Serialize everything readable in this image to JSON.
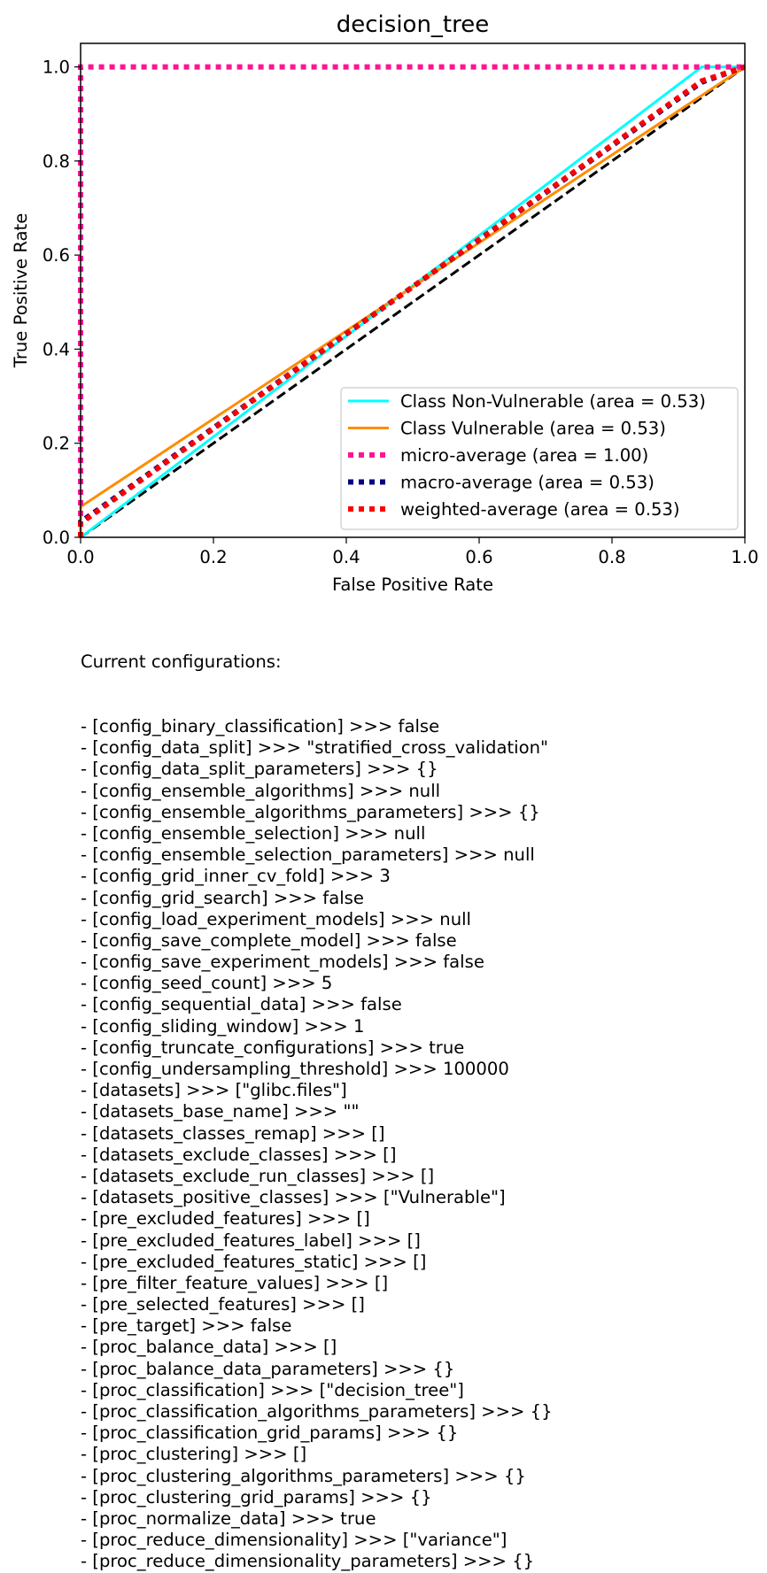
{
  "chart_data": {
    "type": "line",
    "title": "decision_tree",
    "xlabel": "False Positive Rate",
    "ylabel": "True Positive Rate",
    "xlim": [
      0.0,
      1.0
    ],
    "ylim": [
      0.0,
      1.05
    ],
    "xticks": [
      "0.0",
      "0.2",
      "0.4",
      "0.6",
      "0.8",
      "1.0"
    ],
    "yticks": [
      "0.0",
      "0.2",
      "0.4",
      "0.6",
      "0.8",
      "1.0"
    ],
    "legend_position": "lower-right",
    "series": [
      {
        "name": "Class Non-Vulnerable (area = 0.53)",
        "color": "#00ffff",
        "style": "solid",
        "x": [
          0.0,
          0.935,
          1.0
        ],
        "y": [
          0.0,
          1.0,
          1.0
        ]
      },
      {
        "name": "Class Vulnerable (area = 0.53)",
        "color": "#ff8c00",
        "style": "solid",
        "x": [
          0.0,
          0.0,
          1.0
        ],
        "y": [
          0.0,
          0.065,
          1.0
        ]
      },
      {
        "name": "micro-average (area = 1.00)",
        "color": "#ff1493",
        "style": "dotted",
        "x": [
          0.0,
          0.0,
          1.0
        ],
        "y": [
          0.0,
          1.0,
          1.0
        ]
      },
      {
        "name": "macro-average (area = 0.53)",
        "color": "#000080",
        "style": "dotted",
        "x": [
          0.0,
          0.0,
          0.935,
          1.0
        ],
        "y": [
          0.0,
          0.0325,
          0.9675,
          1.0
        ]
      },
      {
        "name": "weighted-average (area = 0.53)",
        "color": "#ff0000",
        "style": "dotted",
        "x": [
          0.0,
          0.0,
          0.935,
          1.0
        ],
        "y": [
          0.0,
          0.03,
          0.97,
          1.0
        ]
      }
    ],
    "reference_line": {
      "name": "chance",
      "color": "#000000",
      "style": "dashed",
      "x": [
        0.0,
        1.0
      ],
      "y": [
        0.0,
        1.0
      ]
    }
  },
  "config": {
    "header": "Current configurations:",
    "lines": [
      "- [config_binary_classification] >>> false",
      "- [config_data_split] >>> \"stratified_cross_validation\"",
      "- [config_data_split_parameters] >>> {}",
      "- [config_ensemble_algorithms] >>> null",
      "- [config_ensemble_algorithms_parameters] >>> {}",
      "- [config_ensemble_selection] >>> null",
      "- [config_ensemble_selection_parameters] >>> null",
      "- [config_grid_inner_cv_fold] >>> 3",
      "- [config_grid_search] >>> false",
      "- [config_load_experiment_models] >>> null",
      "- [config_save_complete_model] >>> false",
      "- [config_save_experiment_models] >>> false",
      "- [config_seed_count] >>> 5",
      "- [config_sequential_data] >>> false",
      "- [config_sliding_window] >>> 1",
      "- [config_truncate_configurations] >>> true",
      "- [config_undersampling_threshold] >>> 100000",
      "- [datasets] >>> [\"glibc.files\"]",
      "- [datasets_base_name] >>> \"\"",
      "- [datasets_classes_remap] >>> []",
      "- [datasets_exclude_classes] >>> []",
      "- [datasets_exclude_run_classes] >>> []",
      "- [datasets_positive_classes] >>> [\"Vulnerable\"]",
      "- [pre_excluded_features] >>> []",
      "- [pre_excluded_features_label] >>> []",
      "- [pre_excluded_features_static] >>> []",
      "- [pre_filter_feature_values] >>> []",
      "- [pre_selected_features] >>> []",
      "- [pre_target] >>> false",
      "- [proc_balance_data] >>> []",
      "- [proc_balance_data_parameters] >>> {}",
      "- [proc_classification] >>> [\"decision_tree\"]",
      "- [proc_classification_algorithms_parameters] >>> {}",
      "- [proc_classification_grid_params] >>> {}",
      "- [proc_clustering] >>> []",
      "- [proc_clustering_algorithms_parameters] >>> {}",
      "- [proc_clustering_grid_params] >>> {}",
      "- [proc_normalize_data] >>> true",
      "- [proc_reduce_dimensionality] >>> [\"variance\"]",
      "- [proc_reduce_dimensionality_parameters] >>> {}"
    ]
  }
}
